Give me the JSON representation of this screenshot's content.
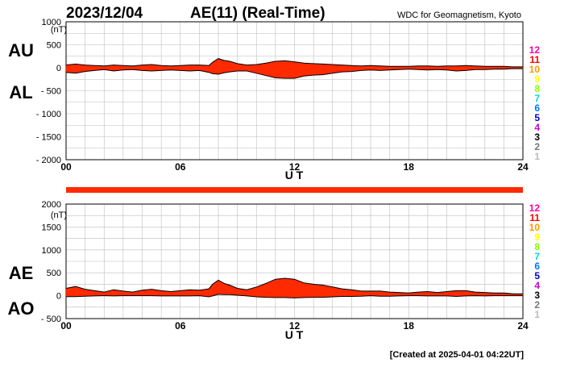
{
  "header": {
    "date": "2023/12/04",
    "title": "AE(11) (Real-Time)",
    "source": "WDC for Geomagnetism, Kyoto"
  },
  "footer": {
    "created": "[Created at 2025-04-01 04:22UT]"
  },
  "colors": {
    "fill": "#ff2a00",
    "line": "#000000",
    "grid": "#bdbdbd",
    "bar": "#ff2a00"
  },
  "station_legend": [
    {
      "label": "12",
      "color": "#ff00aa"
    },
    {
      "label": "11",
      "color": "#ff0000"
    },
    {
      "label": "10",
      "color": "#ff9900"
    },
    {
      "label": "9",
      "color": "#ffff00"
    },
    {
      "label": "8",
      "color": "#88ff00"
    },
    {
      "label": "7",
      "color": "#00dddd"
    },
    {
      "label": "6",
      "color": "#0077ff"
    },
    {
      "label": "5",
      "color": "#0000cc"
    },
    {
      "label": "4",
      "color": "#cc00cc"
    },
    {
      "label": "3",
      "color": "#000000"
    },
    {
      "label": "2",
      "color": "#777777"
    },
    {
      "label": "1",
      "color": "#bbbbbb"
    }
  ],
  "chart_data": [
    {
      "type": "area",
      "panel": "AU/AL",
      "unit": "(nT)",
      "labels": [
        "AU",
        "AL"
      ],
      "xlabel": "U T",
      "xlim": [
        0,
        24
      ],
      "ylim": [
        -2000,
        1000
      ],
      "x_ticks": [
        0,
        6,
        12,
        18,
        24
      ],
      "x_tick_labels": [
        "00",
        "06",
        "12",
        "18",
        "24"
      ],
      "y_ticks": [
        1000,
        500,
        0,
        -500,
        -1000,
        -1500,
        -2000
      ],
      "y_tick_labels": [
        "1000",
        "500",
        "0",
        "- 500",
        "- 1000",
        "- 1500",
        "- 2000"
      ],
      "grid": true,
      "series": [
        {
          "name": "AU",
          "x": [
            0,
            0.5,
            1,
            1.5,
            2,
            2.5,
            3,
            3.5,
            4,
            4.5,
            5,
            5.5,
            6,
            6.5,
            7,
            7.5,
            7.7,
            8,
            8.3,
            8.6,
            9,
            9.5,
            10,
            10.5,
            11,
            11.5,
            12,
            12.5,
            13,
            13.5,
            14,
            14.5,
            15,
            15.5,
            16,
            16.5,
            17,
            17.5,
            18,
            18.5,
            19,
            19.5,
            20,
            20.5,
            21,
            21.5,
            22,
            22.5,
            23,
            23.5,
            24
          ],
          "values": [
            60,
            80,
            60,
            50,
            40,
            60,
            50,
            40,
            60,
            70,
            50,
            40,
            50,
            60,
            60,
            50,
            120,
            200,
            160,
            140,
            90,
            60,
            70,
            100,
            140,
            150,
            130,
            100,
            90,
            80,
            70,
            60,
            50,
            40,
            50,
            40,
            30,
            30,
            30,
            40,
            40,
            30,
            40,
            40,
            50,
            40,
            30,
            30,
            30,
            20,
            20
          ]
        },
        {
          "name": "AL",
          "x": [
            0,
            0.5,
            1,
            1.5,
            2,
            2.5,
            3,
            3.5,
            4,
            4.5,
            5,
            5.5,
            6,
            6.5,
            7,
            7.5,
            7.7,
            8,
            8.3,
            8.6,
            9,
            9.5,
            10,
            10.5,
            11,
            11.5,
            12,
            12.5,
            13,
            13.5,
            14,
            14.5,
            15,
            15.5,
            16,
            16.5,
            17,
            17.5,
            18,
            18.5,
            19,
            19.5,
            20,
            20.5,
            21,
            21.5,
            22,
            22.5,
            23,
            23.5,
            24
          ],
          "values": [
            -100,
            -120,
            -80,
            -60,
            -40,
            -70,
            -50,
            -40,
            -60,
            -70,
            -60,
            -50,
            -60,
            -70,
            -60,
            -100,
            -130,
            -140,
            -110,
            -90,
            -70,
            -70,
            -120,
            -170,
            -220,
            -230,
            -230,
            -180,
            -160,
            -150,
            -120,
            -90,
            -80,
            -60,
            -50,
            -60,
            -50,
            -40,
            -30,
            -40,
            -50,
            -40,
            -50,
            -70,
            -60,
            -40,
            -40,
            -30,
            -30,
            -20,
            -20
          ]
        }
      ]
    },
    {
      "type": "area",
      "panel": "AE/AO",
      "unit": "(nT)",
      "labels": [
        "AE",
        "AO"
      ],
      "xlabel": "U T",
      "xlim": [
        0,
        24
      ],
      "ylim": [
        -500,
        2000
      ],
      "x_ticks": [
        0,
        6,
        12,
        18,
        24
      ],
      "x_tick_labels": [
        "00",
        "06",
        "12",
        "18",
        "24"
      ],
      "y_ticks": [
        2000,
        1500,
        1000,
        500,
        0,
        -500
      ],
      "y_tick_labels": [
        "2000",
        "1500",
        "1000",
        "500",
        "0",
        "- 500"
      ],
      "grid": true,
      "series": [
        {
          "name": "AE",
          "x": [
            0,
            0.5,
            1,
            1.5,
            2,
            2.5,
            3,
            3.5,
            4,
            4.5,
            5,
            5.5,
            6,
            6.5,
            7,
            7.5,
            7.7,
            8,
            8.3,
            8.6,
            9,
            9.5,
            10,
            10.5,
            11,
            11.5,
            12,
            12.5,
            13,
            13.5,
            14,
            14.5,
            15,
            15.5,
            16,
            16.5,
            17,
            17.5,
            18,
            18.5,
            19,
            19.5,
            20,
            20.5,
            21,
            21.5,
            22,
            22.5,
            23,
            23.5,
            24
          ],
          "values": [
            160,
            200,
            140,
            110,
            80,
            130,
            100,
            80,
            120,
            140,
            110,
            90,
            110,
            130,
            120,
            150,
            250,
            340,
            270,
            230,
            160,
            130,
            190,
            270,
            360,
            380,
            360,
            280,
            250,
            230,
            190,
            150,
            130,
            100,
            100,
            100,
            80,
            70,
            60,
            80,
            90,
            70,
            90,
            110,
            110,
            80,
            70,
            60,
            60,
            40,
            40
          ]
        },
        {
          "name": "AO",
          "x": [
            0,
            0.5,
            1,
            1.5,
            2,
            2.5,
            3,
            3.5,
            4,
            4.5,
            5,
            5.5,
            6,
            6.5,
            7,
            7.5,
            7.7,
            8,
            8.3,
            8.6,
            9,
            9.5,
            10,
            10.5,
            11,
            11.5,
            12,
            12.5,
            13,
            13.5,
            14,
            14.5,
            15,
            15.5,
            16,
            16.5,
            17,
            17.5,
            18,
            18.5,
            19,
            19.5,
            20,
            20.5,
            21,
            21.5,
            22,
            22.5,
            23,
            23.5,
            24
          ],
          "values": [
            -20,
            -20,
            -10,
            -5,
            0,
            -5,
            0,
            0,
            0,
            0,
            -5,
            -5,
            -5,
            -5,
            0,
            -25,
            -5,
            30,
            25,
            25,
            10,
            -5,
            -25,
            -35,
            -40,
            -40,
            -50,
            -40,
            -35,
            -35,
            -25,
            -15,
            -15,
            -10,
            0,
            -10,
            -10,
            -5,
            0,
            0,
            -5,
            -5,
            -5,
            -15,
            -5,
            0,
            -5,
            0,
            0,
            0,
            0
          ]
        }
      ]
    }
  ]
}
